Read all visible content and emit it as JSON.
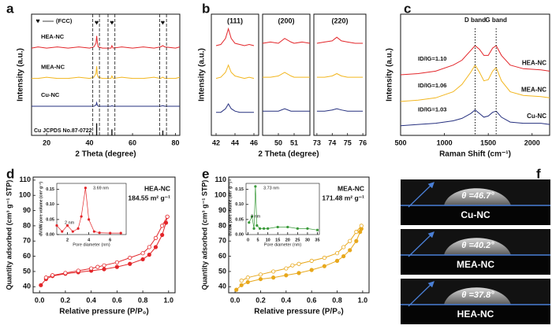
{
  "chart_data": [
    {
      "panel": "a",
      "type": "line",
      "xlabel": "2 Theta (degree)",
      "ylabel": "Intensity (a.u.)",
      "xlim": [
        13,
        82
      ],
      "xticks": [
        20,
        40,
        60,
        80
      ],
      "ylim": [
        0,
        100
      ],
      "x": [
        13,
        16,
        20,
        25,
        30,
        35,
        40,
        42,
        43,
        43.3,
        43.6,
        44,
        46,
        50,
        50.4,
        51,
        55,
        60,
        65,
        70,
        73,
        74.1,
        75,
        80,
        82
      ],
      "series": [
        {
          "name": "HEA-NC",
          "color": "#e3262a",
          "values": [
            72,
            73,
            72,
            73,
            72,
            73,
            72,
            73,
            76,
            82,
            77,
            73,
            72,
            72,
            74,
            72,
            73,
            72,
            73,
            72,
            73,
            74,
            73,
            72,
            73
          ]
        },
        {
          "name": "MEA-NC",
          "color": "#f2b61f",
          "values": [
            47,
            47,
            48,
            47,
            47,
            48,
            47,
            48,
            51,
            57,
            50,
            48,
            47,
            47,
            49,
            47,
            48,
            47,
            47,
            48,
            47,
            48,
            47,
            47,
            48
          ]
        },
        {
          "name": "Cu-NC",
          "color": "#26307f",
          "values": [
            24,
            24,
            24,
            24,
            24,
            24,
            24,
            24,
            25,
            27,
            25,
            24,
            24,
            24,
            24.5,
            24,
            24,
            24,
            24,
            24,
            24,
            24.5,
            24,
            24,
            24
          ]
        }
      ],
      "legend": {
        "symbol": "♥",
        "label": "(FCC)"
      },
      "peak_symbol_x": [
        43.3,
        50.4,
        74.1
      ],
      "dashed_x": [
        41.5,
        44.6,
        48.6,
        51.8,
        72.6,
        75.8
      ],
      "reference": {
        "name": "Cu  JCPDS No.87-0722",
        "x": [
          43.3,
          50.4,
          74.1
        ],
        "values": [
          10,
          5,
          4
        ]
      }
    },
    {
      "panel": "b",
      "type": "line",
      "xlabel": "2 Theta (degree)",
      "ylabel": "Intensity (a.u.)",
      "ylim": [
        0,
        100
      ],
      "panels": [
        {
          "title": "(111)",
          "xlim": [
            41.5,
            46.5
          ],
          "xticks": [
            42,
            44,
            46
          ],
          "x": [
            42,
            42.5,
            43,
            43.3,
            43.6,
            44,
            44.5,
            45,
            45.5,
            46
          ],
          "series": [
            {
              "color": "#e3262a",
              "values": [
                74,
                75,
                80,
                88,
                80,
                76,
                75,
                74,
                75,
                74
              ]
            },
            {
              "color": "#f2b61f",
              "values": [
                47,
                48,
                52,
                58,
                52,
                49,
                48,
                47,
                48,
                47
              ]
            },
            {
              "color": "#26307f",
              "values": [
                19,
                19,
                22,
                26,
                22,
                20,
                19,
                19,
                19,
                19
              ]
            }
          ]
        },
        {
          "title": "(200)",
          "xlim": [
            49,
            52
          ],
          "xticks": [
            50,
            51
          ],
          "x": [
            49,
            49.5,
            50,
            50.4,
            50.8,
            51,
            51.5,
            52
          ],
          "series": [
            {
              "color": "#e3262a",
              "values": [
                76,
                77,
                76,
                80,
                77,
                76,
                77,
                76
              ]
            },
            {
              "color": "#f2b61f",
              "values": [
                48,
                48,
                49,
                52,
                49,
                48,
                48,
                48
              ]
            },
            {
              "color": "#26307f",
              "values": [
                20,
                20,
                20,
                22,
                20,
                20,
                20,
                20
              ]
            }
          ]
        },
        {
          "title": "(220)",
          "xlim": [
            72.8,
            76.2
          ],
          "xticks": [
            73,
            74,
            75,
            76
          ],
          "x": [
            73,
            73.5,
            74,
            74.3,
            74.6,
            75,
            75.5,
            76
          ],
          "series": [
            {
              "color": "#e3262a",
              "values": [
                76,
                77,
                78,
                81,
                78,
                77,
                76,
                76
              ]
            },
            {
              "color": "#f2b61f",
              "values": [
                48,
                48,
                49,
                51,
                49,
                48,
                48,
                48
              ]
            },
            {
              "color": "#26307f",
              "values": [
                20,
                20,
                21,
                22,
                21,
                20,
                20,
                20
              ]
            }
          ]
        }
      ]
    },
    {
      "panel": "c",
      "type": "line",
      "xlabel": "Raman Shift (cm⁻¹)",
      "ylabel": "Intensity (a.u.)",
      "xlim": [
        500,
        2200
      ],
      "xticks": [
        500,
        1000,
        1500,
        2000
      ],
      "ylim": [
        0,
        100
      ],
      "x": [
        500,
        700,
        900,
        1100,
        1200,
        1300,
        1350,
        1400,
        1450,
        1500,
        1550,
        1590,
        1650,
        1750,
        1900,
        2100,
        2200
      ],
      "series": [
        {
          "name": "HEA-NC",
          "ratio": "ID/IG=1.10",
          "color": "#e3262a",
          "values": [
            50,
            51,
            53,
            58,
            62,
            70,
            74,
            71,
            66,
            66,
            72,
            74,
            66,
            58,
            55,
            54,
            53
          ]
        },
        {
          "name": "MEA-NC",
          "ratio": "ID/IG=1.06",
          "color": "#f2b61f",
          "values": [
            28,
            29,
            31,
            36,
            42,
            52,
            58,
            52,
            45,
            46,
            53,
            56,
            45,
            36,
            33,
            32,
            31
          ]
        },
        {
          "name": "Cu-NC",
          "ratio": "ID/IG=1.03",
          "color": "#26307f",
          "values": [
            8,
            9,
            10,
            12,
            14,
            18,
            21,
            18,
            15,
            16,
            19,
            20,
            15,
            11,
            10,
            10,
            9
          ]
        }
      ],
      "bands": [
        {
          "label": "D band",
          "x": 1350
        },
        {
          "label": "G band",
          "x": 1590
        }
      ]
    },
    {
      "panel": "d",
      "type": "line",
      "xlabel": "Relative pressure (P/P₀)",
      "ylabel": "Quantity adsorbed (cm³ g⁻¹ STP)",
      "xlim": [
        -0.05,
        1.05
      ],
      "xticks": [
        {
          "value": 0,
          "label": "0.0"
        },
        0.2,
        0.4,
        0.6,
        0.8,
        {
          "value": 1,
          "label": "1.0"
        }
      ],
      "ylim": [
        36,
        112
      ],
      "yticks": [
        40,
        50,
        60,
        70,
        80,
        90,
        100,
        110
      ],
      "annotation": [
        "HEA-NC",
        "184.55 m² g⁻¹"
      ],
      "series": [
        {
          "color": "#e3262a",
          "marker": "filled",
          "x": [
            0.01,
            0.05,
            0.1,
            0.2,
            0.3,
            0.4,
            0.5,
            0.6,
            0.7,
            0.8,
            0.85,
            0.9,
            0.95,
            0.98,
            0.99
          ],
          "values": [
            41,
            45,
            47,
            48.5,
            49.5,
            50.5,
            51.5,
            53,
            55,
            58,
            61,
            66,
            74,
            82,
            86
          ]
        },
        {
          "color": "#e3262a",
          "marker": "open",
          "x": [
            0.99,
            0.95,
            0.9,
            0.85,
            0.8,
            0.7,
            0.6,
            0.5,
            0.45,
            0.4,
            0.3,
            0.2,
            0.1,
            0.05
          ],
          "values": [
            86,
            80,
            72,
            66,
            62,
            59,
            56,
            54,
            53,
            52,
            50.5,
            49,
            47.5,
            46
          ]
        }
      ],
      "inset": {
        "xlabel": "Pore diameter (nm)",
        "ylabel": "dV/dW pore volume (cm³ g⁻¹)",
        "xlim": [
          1,
          7.5
        ],
        "xticks": [
          2,
          4,
          6
        ],
        "ylim": [
          0,
          0.17
        ],
        "yticks": [
          {
            "value": 0,
            "label": "0.00"
          },
          0.05,
          {
            "value": 0.1,
            "label": "0.10"
          },
          0.15
        ],
        "peak_labels": [
          "2 nm",
          "3.69 nm"
        ],
        "series": [
          {
            "color": "#e3262a",
            "marker": "filled",
            "x": [
              1,
              1.5,
              2,
              2.5,
              3,
              3.3,
              3.69,
              4,
              4.5,
              5,
              6,
              7
            ],
            "values": [
              0.03,
              0.01,
              0.03,
              0.01,
              0.02,
              0.06,
              0.155,
              0.05,
              0.01,
              0.006,
              0.005,
              0.005
            ]
          }
        ]
      }
    },
    {
      "panel": "e",
      "type": "line",
      "xlabel": "Relative pressure (P/P₀)",
      "ylabel": "Quantity adsorbed (cm³ g⁻¹ STP)",
      "xlim": [
        -0.05,
        1.05
      ],
      "xticks": [
        {
          "value": 0,
          "label": "0.0"
        },
        0.2,
        0.4,
        0.6,
        0.8,
        {
          "value": 1,
          "label": "1.0"
        }
      ],
      "ylim": [
        36,
        112
      ],
      "yticks": [
        40,
        50,
        60,
        70,
        80,
        90,
        100,
        110
      ],
      "annotation": [
        "MEA-NC",
        "171.48 m² g⁻¹"
      ],
      "series": [
        {
          "color": "#e8a81c",
          "marker": "filled",
          "x": [
            0.01,
            0.05,
            0.1,
            0.2,
            0.3,
            0.4,
            0.5,
            0.6,
            0.7,
            0.8,
            0.85,
            0.9,
            0.95,
            0.98,
            0.99
          ],
          "values": [
            38,
            41,
            43,
            45,
            46,
            47.5,
            49,
            51,
            53.5,
            57,
            60,
            64,
            70,
            76,
            78
          ]
        },
        {
          "color": "#e8a81c",
          "marker": "open",
          "x": [
            0.99,
            0.95,
            0.9,
            0.85,
            0.8,
            0.7,
            0.6,
            0.5,
            0.45,
            0.4,
            0.3,
            0.2,
            0.1,
            0.05
          ],
          "values": [
            80,
            76,
            70,
            66,
            62,
            59,
            57,
            55,
            54,
            52,
            50,
            48,
            46,
            44
          ]
        }
      ],
      "inset": {
        "xlabel": "Pore diameter (nm)",
        "ylabel": "dV/dW pore volume (cm³ g⁻¹)",
        "xlim": [
          -1,
          36
        ],
        "xticks": [
          0,
          5,
          10,
          15,
          20,
          25,
          30,
          35
        ],
        "ylim": [
          0,
          0.17
        ],
        "yticks": [
          {
            "value": 0,
            "label": "0.00"
          },
          0.05,
          {
            "value": 0.1,
            "label": "0.10"
          },
          0.15
        ],
        "peak_labels": [
          "3 nm",
          "3.73 nm"
        ],
        "series": [
          {
            "color": "#3a9a3a",
            "marker": "filled",
            "x": [
              0.5,
              2,
              3,
              3.73,
              4.5,
              6,
              8,
              10,
              15,
              20,
              25,
              30,
              35
            ],
            "values": [
              0.04,
              0.06,
              0.02,
              0.16,
              0.03,
              0.02,
              0.02,
              0.02,
              0.025,
              0.025,
              0.02,
              0.02,
              0.015
            ]
          }
        ]
      }
    }
  ],
  "panel_f": {
    "panel": "f",
    "images": [
      {
        "angle": "θ =46.7°",
        "name": "Cu-NC"
      },
      {
        "angle": "θ =40.2°",
        "name": "MEA-NC"
      },
      {
        "angle": "θ =37.8°",
        "name": "HEA-NC"
      }
    ]
  }
}
